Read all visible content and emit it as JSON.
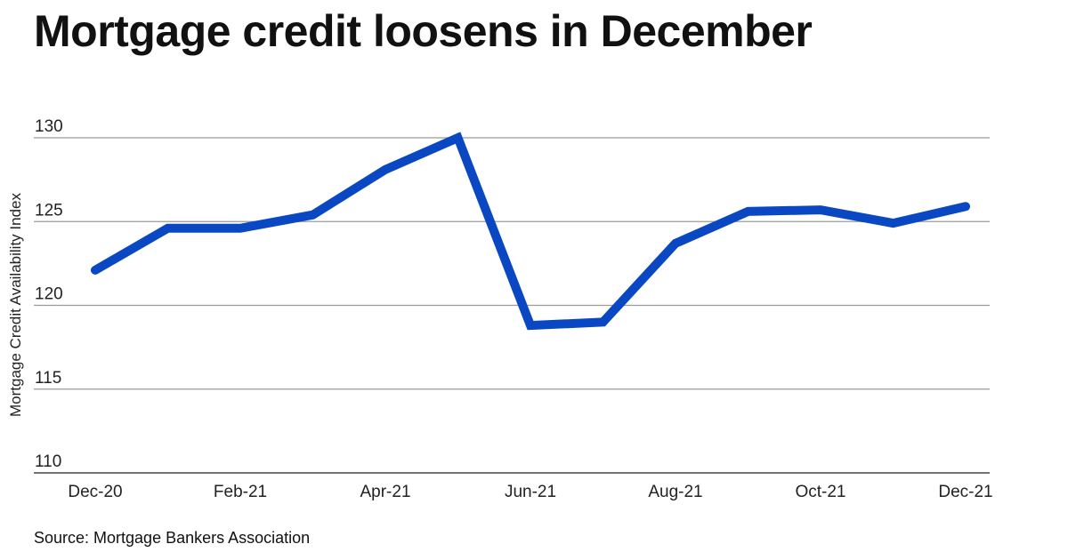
{
  "title": "Mortgage credit loosens in December",
  "source": "Source: Mortgage Bankers Association",
  "colors": {
    "line": "#0A47C2",
    "grid": "#9a9a9a",
    "text": "#111111"
  },
  "chart_data": {
    "type": "line",
    "title": "Mortgage credit loosens in December",
    "xlabel": "",
    "ylabel": "Mortgage Credit Availability Index",
    "ylim": [
      110,
      130
    ],
    "yticks": [
      "110",
      "115",
      "120",
      "125",
      "130"
    ],
    "xtick_labels": [
      "Dec-20",
      "Feb-21",
      "Apr-21",
      "Jun-21",
      "Aug-21",
      "Oct-21",
      "Dec-21"
    ],
    "grid": true,
    "legend": "none",
    "series": [
      {
        "x": [
          "Dec-20",
          "Jan-21",
          "Feb-21",
          "Mar-21",
          "Apr-21",
          "May-21",
          "Jun-21",
          "Jul-21",
          "Aug-21",
          "Sep-21",
          "Oct-21",
          "Nov-21",
          "Dec-21"
        ],
        "values": [
          122.1,
          124.6,
          124.6,
          125.4,
          128.1,
          130.0,
          118.8,
          119.0,
          123.7,
          125.6,
          125.7,
          124.9,
          125.9
        ]
      }
    ]
  }
}
